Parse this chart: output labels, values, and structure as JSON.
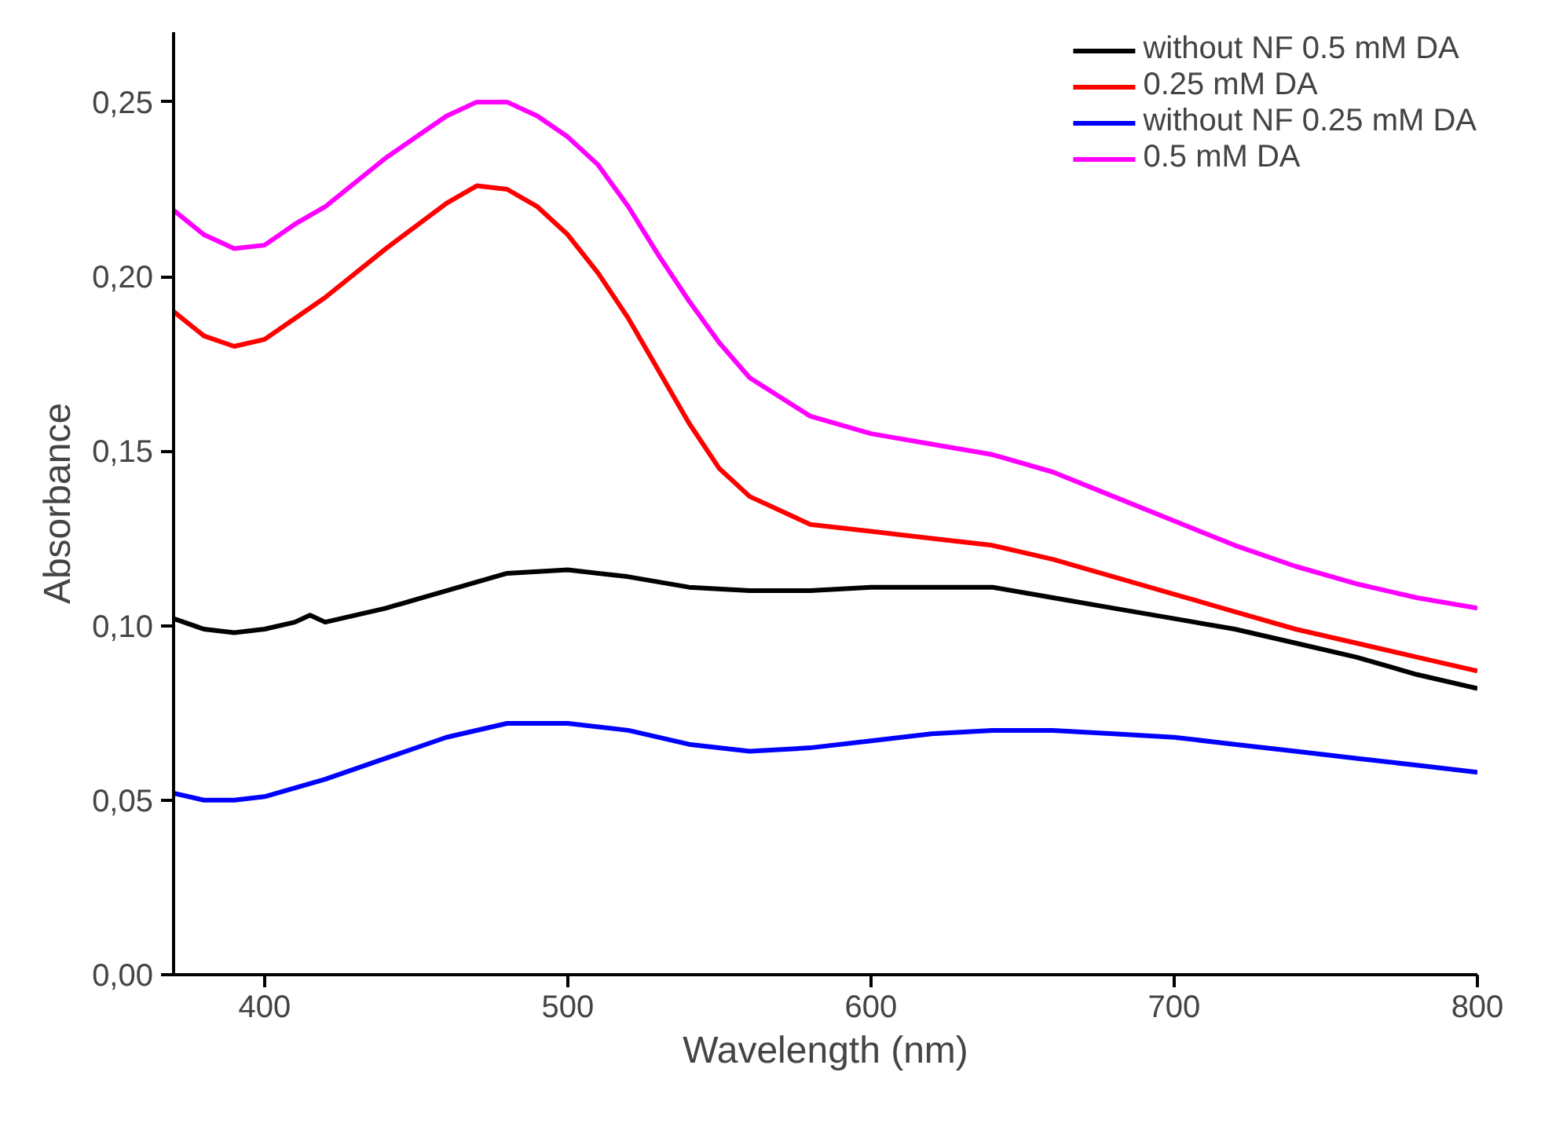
{
  "chart_data": {
    "type": "line",
    "xlabel": "Wavelength (nm)",
    "ylabel": "Absorbance",
    "xlim": [
      370,
      800
    ],
    "xticks": [
      400,
      500,
      600,
      700,
      800
    ],
    "ylim": [
      0,
      0.27
    ],
    "yticks": [
      {
        "value": 0,
        "label": "0,00"
      },
      {
        "value": 0.05,
        "label": "0,05"
      },
      {
        "value": 0.1,
        "label": "0,10"
      },
      {
        "value": 0.15,
        "label": "0,15"
      },
      {
        "value": 0.2,
        "label": "0,20"
      },
      {
        "value": 0.25,
        "label": "0,25"
      }
    ],
    "grid": false,
    "legend": "top right",
    "marker": "none",
    "line_style": "solid",
    "series": [
      {
        "name": "without NF 0.5 mM DA",
        "color": "#000000",
        "x": [
          370,
          380,
          390,
          400,
          410,
          415,
          420,
          440,
          460,
          480,
          500,
          520,
          540,
          560,
          580,
          600,
          620,
          640,
          660,
          680,
          700,
          720,
          740,
          760,
          780,
          800
        ],
        "values": [
          0.102,
          0.099,
          0.098,
          0.099,
          0.101,
          0.103,
          0.101,
          0.105,
          0.11,
          0.115,
          0.116,
          0.114,
          0.111,
          0.11,
          0.11,
          0.111,
          0.111,
          0.111,
          0.108,
          0.105,
          0.102,
          0.099,
          0.095,
          0.091,
          0.086,
          0.082
        ]
      },
      {
        "name": "0.25 mM DA",
        "color": "#ff0000",
        "x": [
          370,
          380,
          390,
          400,
          410,
          420,
          440,
          460,
          470,
          480,
          490,
          500,
          510,
          520,
          530,
          540,
          550,
          560,
          580,
          600,
          620,
          640,
          660,
          680,
          700,
          720,
          740,
          760,
          780,
          800
        ],
        "values": [
          0.19,
          0.183,
          0.18,
          0.182,
          0.188,
          0.194,
          0.208,
          0.221,
          0.226,
          0.225,
          0.22,
          0.212,
          0.201,
          0.188,
          0.173,
          0.158,
          0.145,
          0.137,
          0.129,
          0.127,
          0.125,
          0.123,
          0.119,
          0.114,
          0.109,
          0.104,
          0.099,
          0.095,
          0.091,
          0.087
        ]
      },
      {
        "name": "without NF 0.25 mM DA",
        "color": "#0000ff",
        "x": [
          370,
          380,
          390,
          400,
          420,
          440,
          460,
          480,
          500,
          520,
          540,
          560,
          580,
          600,
          620,
          640,
          660,
          680,
          700,
          720,
          740,
          760,
          780,
          800
        ],
        "values": [
          0.052,
          0.05,
          0.05,
          0.051,
          0.056,
          0.062,
          0.068,
          0.072,
          0.072,
          0.07,
          0.066,
          0.064,
          0.065,
          0.067,
          0.069,
          0.07,
          0.07,
          0.069,
          0.068,
          0.066,
          0.064,
          0.062,
          0.06,
          0.058
        ]
      },
      {
        "name": "0.5 mM DA",
        "color": "#ff00ff",
        "x": [
          370,
          380,
          390,
          400,
          410,
          420,
          440,
          460,
          470,
          480,
          490,
          500,
          510,
          520,
          530,
          540,
          550,
          560,
          580,
          600,
          620,
          640,
          660,
          680,
          700,
          720,
          740,
          760,
          780,
          800
        ],
        "values": [
          0.219,
          0.212,
          0.208,
          0.209,
          0.215,
          0.22,
          0.234,
          0.246,
          0.25,
          0.25,
          0.246,
          0.24,
          0.232,
          0.22,
          0.206,
          0.193,
          0.181,
          0.171,
          0.16,
          0.155,
          0.152,
          0.149,
          0.144,
          0.137,
          0.13,
          0.123,
          0.117,
          0.112,
          0.108,
          0.105
        ]
      }
    ]
  }
}
